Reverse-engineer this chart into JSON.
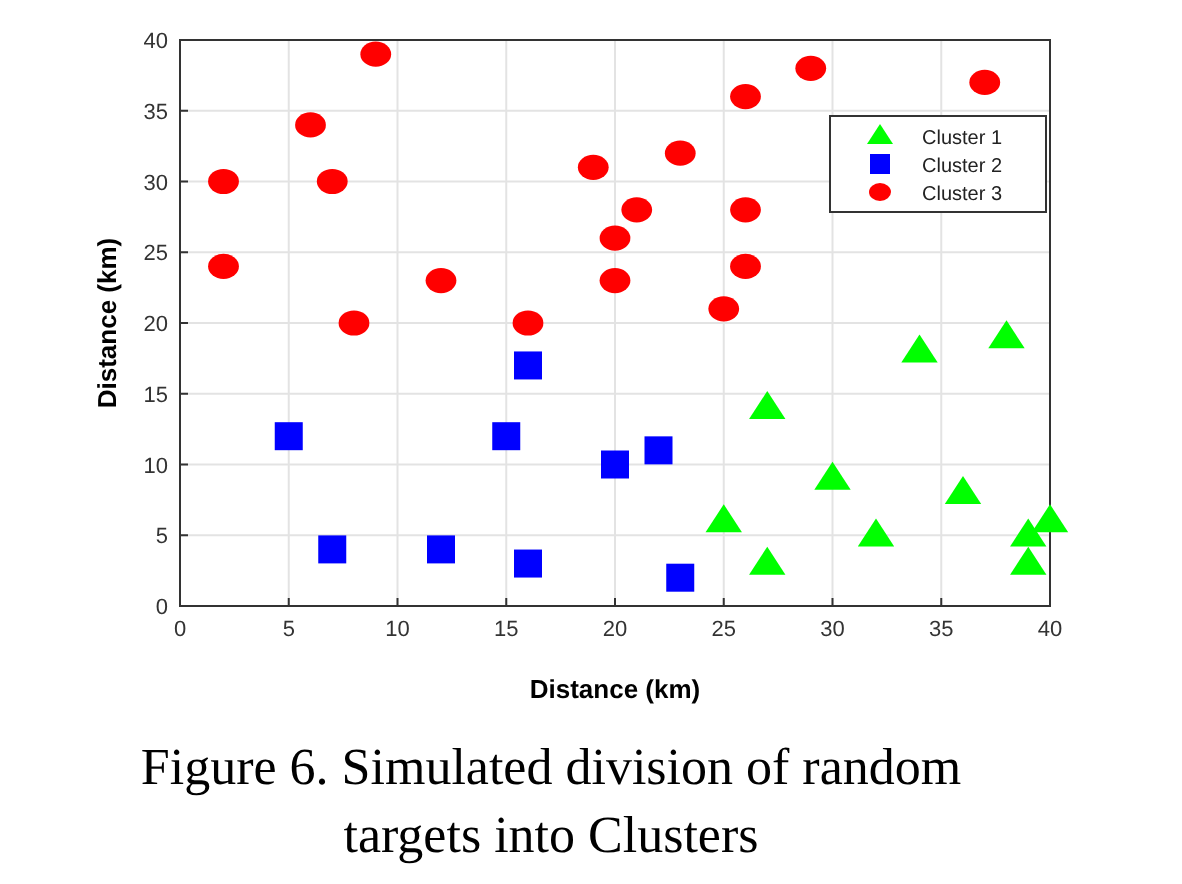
{
  "chart_data": {
    "type": "scatter",
    "xlabel": "Distance (km)",
    "ylabel": "Distance (km)",
    "annotations": [
      "Figure 6. Simulated division of random targets into Clusters"
    ],
    "xlim": [
      0,
      40
    ],
    "ylim": [
      0,
      40
    ],
    "xticks": [
      0,
      5,
      10,
      15,
      20,
      25,
      30,
      35,
      40
    ],
    "yticks": [
      0,
      5,
      10,
      15,
      20,
      25,
      30,
      35,
      40
    ],
    "grid": true,
    "legend": "top right",
    "series": [
      {
        "name": "Cluster 1",
        "color": "#00ff00",
        "marker": "triangle",
        "x": [
          25,
          27,
          27,
          30,
          32,
          34,
          36,
          38,
          39,
          39,
          40
        ],
        "values": [
          6,
          14,
          3,
          9,
          5,
          18,
          8,
          19,
          5,
          3,
          6
        ]
      },
      {
        "name": "Cluster 2",
        "color": "#0000ff",
        "marker": "square",
        "x": [
          5,
          7,
          12,
          15,
          16,
          16,
          20,
          22,
          23
        ],
        "values": [
          12,
          4,
          4,
          12,
          17,
          3,
          10,
          11,
          2
        ]
      },
      {
        "name": "Cluster 3",
        "color": "#ff0000",
        "marker": "circle",
        "x": [
          2,
          2,
          6,
          7,
          8,
          9,
          12,
          16,
          19,
          20,
          20,
          21,
          23,
          25,
          26,
          26,
          26,
          29,
          37
        ],
        "values": [
          30,
          24,
          34,
          30,
          20,
          39,
          23,
          20,
          31,
          26,
          23,
          28,
          32,
          21,
          36,
          28,
          24,
          38,
          37
        ]
      }
    ]
  }
}
